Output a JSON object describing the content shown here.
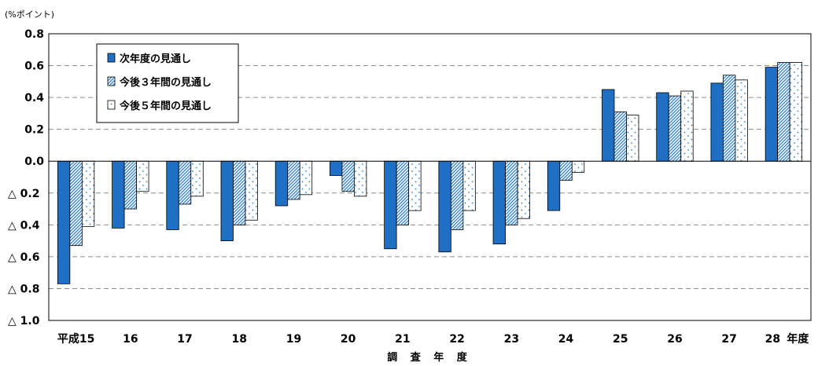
{
  "chart_data": {
    "type": "bar",
    "title": "",
    "y_unit_label": "(%ポイント)",
    "xlabel": "調 査 年 度",
    "ylabel": "",
    "ylim": [
      -1.0,
      0.8
    ],
    "y_ticks": [
      0.8,
      0.6,
      0.4,
      0.2,
      0.0,
      -0.2,
      -0.4,
      -0.6,
      -0.8,
      -1.0
    ],
    "y_tick_labels": [
      "0.8",
      "0.6",
      "0.4",
      "0.2",
      "0.0",
      "△ 0.2",
      "△ 0.4",
      "△ 0.6",
      "△ 0.8",
      "△ 1.0"
    ],
    "categories": [
      "平成15",
      "16",
      "17",
      "18",
      "19",
      "20",
      "21",
      "22",
      "23",
      "24",
      "25",
      "26",
      "27",
      "28"
    ],
    "x_axis_suffix": "年度",
    "grid": true,
    "legend_position": "top-left",
    "series": [
      {
        "name": "次年度の見通し",
        "pattern": "solid",
        "color": "#1f6fc4",
        "values": [
          -0.77,
          -0.42,
          -0.43,
          -0.5,
          -0.28,
          -0.09,
          -0.55,
          -0.57,
          -0.52,
          -0.31,
          0.45,
          0.43,
          0.49,
          0.59
        ]
      },
      {
        "name": "今後３年間の見通し",
        "pattern": "diagonal-hatch",
        "color": "#2f7fc8",
        "values": [
          -0.53,
          -0.3,
          -0.27,
          -0.4,
          -0.24,
          -0.19,
          -0.4,
          -0.43,
          -0.4,
          -0.12,
          0.31,
          0.41,
          0.54,
          0.62
        ]
      },
      {
        "name": "今後５年間の見通し",
        "pattern": "dotted",
        "color": "#2f7fc8",
        "values": [
          -0.41,
          -0.19,
          -0.22,
          -0.37,
          -0.21,
          -0.22,
          -0.31,
          -0.31,
          -0.36,
          -0.07,
          0.29,
          0.44,
          0.51,
          0.62
        ]
      }
    ]
  }
}
